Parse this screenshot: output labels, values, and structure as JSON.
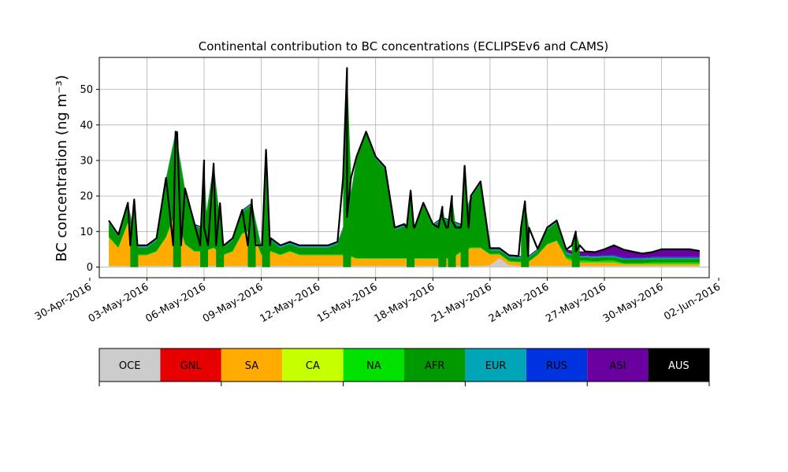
{
  "chart_data": {
    "type": "area",
    "stacked": true,
    "title": "Continental contribution to BC concentrations (ECLIPSEv6 and CAMS)",
    "ylabel": "BC concentration (ng m⁻³)",
    "ylim": [
      -3,
      59
    ],
    "xlim": [
      "2016-04-30T12:00",
      "2016-06-01T12:00"
    ],
    "grid": true,
    "x_tick_labels": [
      "30-Apr-2016",
      "03-May-2016",
      "06-May-2016",
      "09-May-2016",
      "12-May-2016",
      "15-May-2016",
      "18-May-2016",
      "21-May-2016",
      "24-May-2016",
      "27-May-2016",
      "30-May-2016",
      "02-Jun-2016"
    ],
    "y_tick_labels": [
      "0",
      "10",
      "20",
      "30",
      "40",
      "50"
    ],
    "y_ticks": [
      0,
      10,
      20,
      30,
      40,
      50
    ],
    "x": [
      "2016-05-01",
      "2016-05-01T12:00",
      "2016-05-02",
      "2016-05-02T12:00",
      "2016-05-03",
      "2016-05-03T12:00",
      "2016-05-04",
      "2016-05-04T12:00",
      "2016-05-05",
      "2016-05-05T12:00",
      "2016-05-06",
      "2016-05-06T12:00",
      "2016-05-07",
      "2016-05-07T12:00",
      "2016-05-08",
      "2016-05-08T12:00",
      "2016-05-09",
      "2016-05-09T12:00",
      "2016-05-10",
      "2016-05-10T12:00",
      "2016-05-11",
      "2016-05-11T12:00",
      "2016-05-12",
      "2016-05-12T12:00",
      "2016-05-13",
      "2016-05-13T12:00",
      "2016-05-14",
      "2016-05-14T12:00",
      "2016-05-15",
      "2016-05-15T12:00",
      "2016-05-16",
      "2016-05-16T12:00",
      "2016-05-17",
      "2016-05-17T12:00",
      "2016-05-18",
      "2016-05-18T12:00",
      "2016-05-19",
      "2016-05-19T12:00",
      "2016-05-20",
      "2016-05-20T12:00",
      "2016-05-21",
      "2016-05-21T12:00",
      "2016-05-22",
      "2016-05-22T12:00",
      "2016-05-23",
      "2016-05-23T12:00",
      "2016-05-24",
      "2016-05-24T12:00",
      "2016-05-25",
      "2016-05-25T12:00",
      "2016-05-26",
      "2016-05-26T12:00",
      "2016-05-27",
      "2016-05-27T12:00",
      "2016-05-28",
      "2016-05-28T12:00",
      "2016-05-29",
      "2016-05-29T12:00",
      "2016-05-30",
      "2016-05-30T12:00",
      "2016-05-31",
      "2016-05-31T12:00",
      "2016-06-01"
    ],
    "series": [
      {
        "name": "OCE",
        "color": "#cccccc",
        "values": [
          0.3,
          0.3,
          0.3,
          0.3,
          0.3,
          0.3,
          0.3,
          0.3,
          0.3,
          0.3,
          0.3,
          0.3,
          0.3,
          0.3,
          0.3,
          0.3,
          0.3,
          0.3,
          0.3,
          0.3,
          0.3,
          0.3,
          0.3,
          0.3,
          0.3,
          0.3,
          0.3,
          0.3,
          0.3,
          0.3,
          0.3,
          0.3,
          0.3,
          0.3,
          0.3,
          0.3,
          0.3,
          0.3,
          0.3,
          0.3,
          0.5,
          2.5,
          0.5,
          0.3,
          0.3,
          0.3,
          0.3,
          0.3,
          0.3,
          0.3,
          0.3,
          0.3,
          0.3,
          0.3,
          0.3,
          0.3,
          0.3,
          0.3,
          0.3,
          0.3,
          0.3,
          0.3,
          0.3
        ]
      },
      {
        "name": "GNL",
        "color": "#e60000",
        "values": [
          0,
          0,
          0,
          0,
          0,
          0,
          0,
          0,
          0,
          0,
          0,
          0,
          0,
          0,
          0,
          0,
          0,
          0,
          0,
          0,
          0,
          0,
          0,
          0,
          0,
          0,
          0,
          0,
          0,
          0,
          0,
          0,
          0,
          0,
          0,
          0,
          0,
          0,
          0,
          0,
          0,
          0,
          0,
          0,
          0,
          0,
          0,
          0,
          0,
          0,
          0,
          0,
          0,
          0,
          0,
          0,
          0,
          0,
          0,
          0,
          0,
          0,
          0
        ]
      },
      {
        "name": "SA",
        "color": "#ffab00",
        "values": [
          8,
          5,
          12,
          3,
          3,
          4,
          8,
          15,
          6,
          4,
          4,
          5,
          3,
          4,
          9,
          10,
          3,
          4,
          3,
          4,
          3,
          3,
          3,
          3,
          3,
          3,
          2,
          2,
          2,
          2,
          2,
          2,
          2,
          2,
          2,
          2,
          2,
          4,
          5,
          5,
          3,
          1,
          1,
          1,
          1,
          3,
          6,
          7,
          2,
          1,
          1,
          1,
          1,
          1,
          0.5,
          0.5,
          0.5,
          0.5,
          0.5,
          0.5,
          0.5,
          0.5,
          0.5
        ]
      },
      {
        "name": "CA",
        "color": "#c6ff00",
        "values": [
          0,
          0,
          0,
          0,
          0,
          0,
          0,
          0,
          0,
          0,
          0,
          0,
          0,
          0,
          0,
          0,
          0,
          0,
          0,
          0,
          0,
          0,
          0,
          0,
          0,
          0,
          0,
          0,
          0,
          0,
          0,
          0,
          0,
          0,
          0,
          0,
          0,
          0,
          0,
          0,
          0,
          0,
          0,
          0,
          0,
          0,
          0,
          0,
          0,
          0,
          0,
          0,
          0,
          0,
          0,
          0,
          0,
          0,
          0,
          0,
          0,
          0,
          0
        ]
      },
      {
        "name": "NA",
        "color": "#00e100",
        "values": [
          0.2,
          0.2,
          0.2,
          0.2,
          0.2,
          0.2,
          0.2,
          0.2,
          0.2,
          0.2,
          0.2,
          0.2,
          0.2,
          0.2,
          0.2,
          0.2,
          0.2,
          0.2,
          0.2,
          0.2,
          0.2,
          0.2,
          0.2,
          0.2,
          0.2,
          0.2,
          0.2,
          0.2,
          0.2,
          0.2,
          0.2,
          0.2,
          0.2,
          0.2,
          0.2,
          0.2,
          0.2,
          0.2,
          0.2,
          0.2,
          0.2,
          0.2,
          0.2,
          0.2,
          0.2,
          0.2,
          0.2,
          0.2,
          0.5,
          0.5,
          0.5,
          0.3,
          0.5,
          0.5,
          0.3,
          0.3,
          0.3,
          0.5,
          0.5,
          0.5,
          0.5,
          0.5,
          0.5
        ]
      },
      {
        "name": "AFR",
        "color": "#009a00",
        "values": [
          4,
          3,
          5,
          2,
          2,
          3,
          16,
          22,
          15,
          7,
          6,
          23,
          2,
          3,
          6,
          7,
          2,
          3,
          2,
          2,
          2,
          2,
          2,
          2,
          3,
          10,
          28,
          35,
          28,
          25,
          8,
          9,
          8,
          15,
          9,
          11,
          10,
          7,
          14,
          18,
          1,
          1,
          1,
          1,
          1,
          1,
          4,
          5,
          1,
          1,
          1,
          1,
          1,
          1,
          1,
          1,
          1,
          1,
          1,
          1,
          1,
          1,
          1
        ]
      },
      {
        "name": "EUR",
        "color": "#00a6b8",
        "values": [
          0.3,
          0.3,
          0.3,
          0.3,
          0.3,
          0.3,
          0.3,
          0.3,
          0.3,
          0.3,
          0.3,
          0.3,
          0.3,
          0.3,
          0.3,
          0.3,
          0.3,
          0.3,
          0.3,
          0.3,
          0.3,
          0.3,
          0.3,
          0.3,
          0.3,
          0.3,
          0.3,
          0.3,
          0.3,
          0.3,
          0.3,
          0.3,
          0.3,
          0.3,
          0.3,
          0.3,
          0.3,
          0.3,
          0.3,
          0.3,
          0.3,
          0.3,
          0.3,
          0.3,
          0.3,
          0.3,
          0.3,
          0.3,
          0.3,
          0.3,
          0.3,
          0.3,
          0.3,
          0.3,
          0.3,
          0.3,
          0.3,
          0.3,
          0.3,
          0.3,
          0.3,
          0.3,
          0.3
        ]
      },
      {
        "name": "RUS",
        "color": "#0033e0",
        "values": [
          0.1,
          0.1,
          0.1,
          0.1,
          0.1,
          0.1,
          0.1,
          0.1,
          0.1,
          0.1,
          0.1,
          0.1,
          0.1,
          0.1,
          0.1,
          0.1,
          0.1,
          0.1,
          0.1,
          0.1,
          0.1,
          0.1,
          0.1,
          0.1,
          0.1,
          0.1,
          0.1,
          0.1,
          0.1,
          0.1,
          0.1,
          0.1,
          0.1,
          0.1,
          0.1,
          0.1,
          0.1,
          0.1,
          0.1,
          0.1,
          0.1,
          0.1,
          0.1,
          0.1,
          0.1,
          0.1,
          0.1,
          0.1,
          0.1,
          0.1,
          0.1,
          0.1,
          0.2,
          0.3,
          0.3,
          0.2,
          0.2,
          0.2,
          0.2,
          0.2,
          0.2,
          0.2,
          0.2
        ]
      },
      {
        "name": "ASI",
        "color": "#6a00a0",
        "values": [
          0,
          0,
          0,
          0,
          0,
          0,
          0,
          0,
          0,
          0,
          0,
          0,
          0,
          0,
          0,
          0,
          0,
          0,
          0,
          0,
          0,
          0,
          0,
          0,
          0,
          0,
          0,
          0,
          0,
          0,
          0,
          0,
          0,
          0,
          0,
          0,
          0,
          0,
          0,
          0,
          0,
          0,
          0,
          0,
          0,
          0,
          0,
          0,
          0.5,
          1,
          1,
          1,
          1.5,
          2.5,
          2,
          1.5,
          1,
          1.2,
          2,
          2,
          2,
          2,
          1.5
        ]
      },
      {
        "name": "AUS",
        "color": "#000000",
        "values": [
          0.2,
          0.2,
          0.2,
          0.2,
          0.2,
          0.2,
          0.2,
          0.2,
          0.2,
          0.2,
          0.2,
          0.2,
          0.2,
          0.2,
          0.2,
          0.2,
          0.2,
          0.2,
          0.2,
          0.2,
          0.2,
          0.2,
          0.2,
          0.2,
          0.2,
          0.2,
          0.2,
          0.2,
          0.2,
          0.2,
          0.2,
          0.2,
          0.2,
          0.2,
          0.2,
          0.2,
          0.2,
          0.2,
          0.2,
          0.2,
          0.2,
          0.2,
          0.2,
          0.2,
          0.2,
          0.2,
          0.2,
          0.2,
          0.2,
          0.2,
          0.2,
          0.2,
          0.2,
          0.2,
          0.2,
          0.2,
          0.2,
          0.2,
          0.2,
          0.2,
          0.2,
          0.2,
          0.2
        ]
      }
    ],
    "spikes": [
      {
        "x": "2016-05-02T08:00",
        "total": 19
      },
      {
        "x": "2016-05-04T14:00",
        "total": 38
      },
      {
        "x": "2016-05-06T00:00",
        "total": 30
      },
      {
        "x": "2016-05-06T20:00",
        "total": 18
      },
      {
        "x": "2016-05-08T12:00",
        "total": 19
      },
      {
        "x": "2016-05-09T06:00",
        "total": 33
      },
      {
        "x": "2016-05-13T12:00",
        "total": 56
      },
      {
        "x": "2016-05-16T20:00",
        "total": 21.5
      },
      {
        "x": "2016-05-18T12:00",
        "total": 17
      },
      {
        "x": "2016-05-19T00:00",
        "total": 20
      },
      {
        "x": "2016-05-19T16:00",
        "total": 28.5
      },
      {
        "x": "2016-05-22T20:00",
        "total": 18.5
      },
      {
        "x": "2016-05-25T12:00",
        "total": 10
      }
    ]
  },
  "legend": {
    "items": [
      {
        "label": "OCE",
        "color": "#cccccc"
      },
      {
        "label": "GNL",
        "color": "#e60000"
      },
      {
        "label": "SA",
        "color": "#ffab00"
      },
      {
        "label": "CA",
        "color": "#c6ff00"
      },
      {
        "label": "NA",
        "color": "#00e100"
      },
      {
        "label": "AFR",
        "color": "#009a00"
      },
      {
        "label": "EUR",
        "color": "#00a6b8"
      },
      {
        "label": "RUS",
        "color": "#0033e0"
      },
      {
        "label": "ASI",
        "color": "#6a00a0"
      },
      {
        "label": "AUS",
        "color": "#000000"
      }
    ]
  }
}
